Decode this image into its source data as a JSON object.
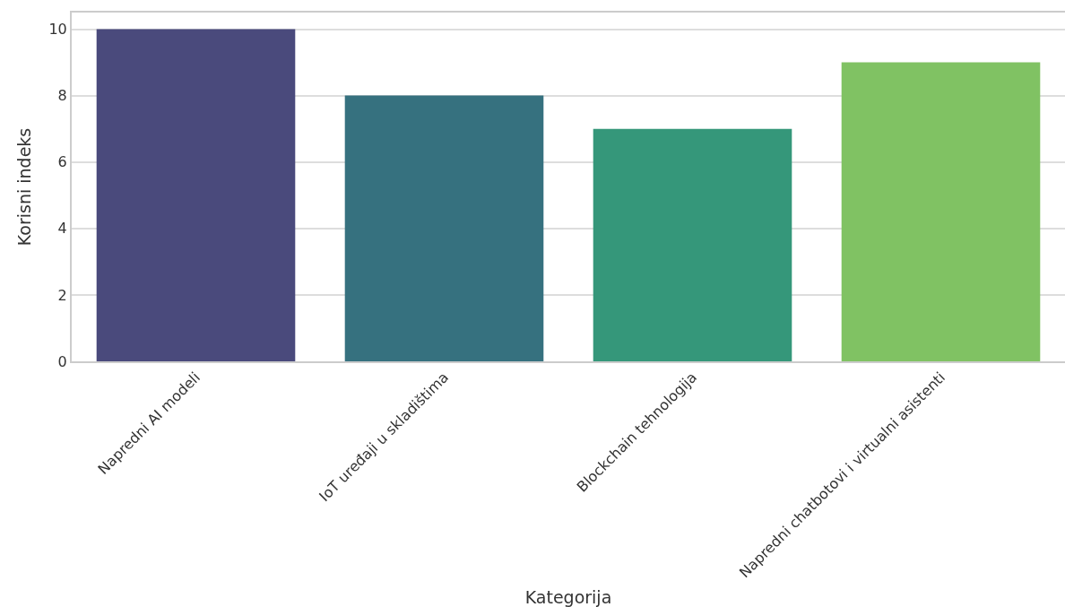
{
  "chart_data": {
    "type": "bar",
    "xlabel": "Kategorija",
    "ylabel": "Korisni indeks",
    "categories": [
      "Napredni AI modeli",
      "IoT uređaji u skladištima",
      "Blockchain tehnologija",
      "Napredni chatbotovi i virtualni asistenti"
    ],
    "values": [
      10,
      8,
      7,
      9
    ],
    "colors": [
      "#4a4a7c",
      "#36717f",
      "#35977a",
      "#80c263"
    ],
    "ylim": [
      0,
      10.5
    ],
    "yticks": [
      0,
      2,
      4,
      6,
      8,
      10
    ],
    "grid": "y"
  }
}
